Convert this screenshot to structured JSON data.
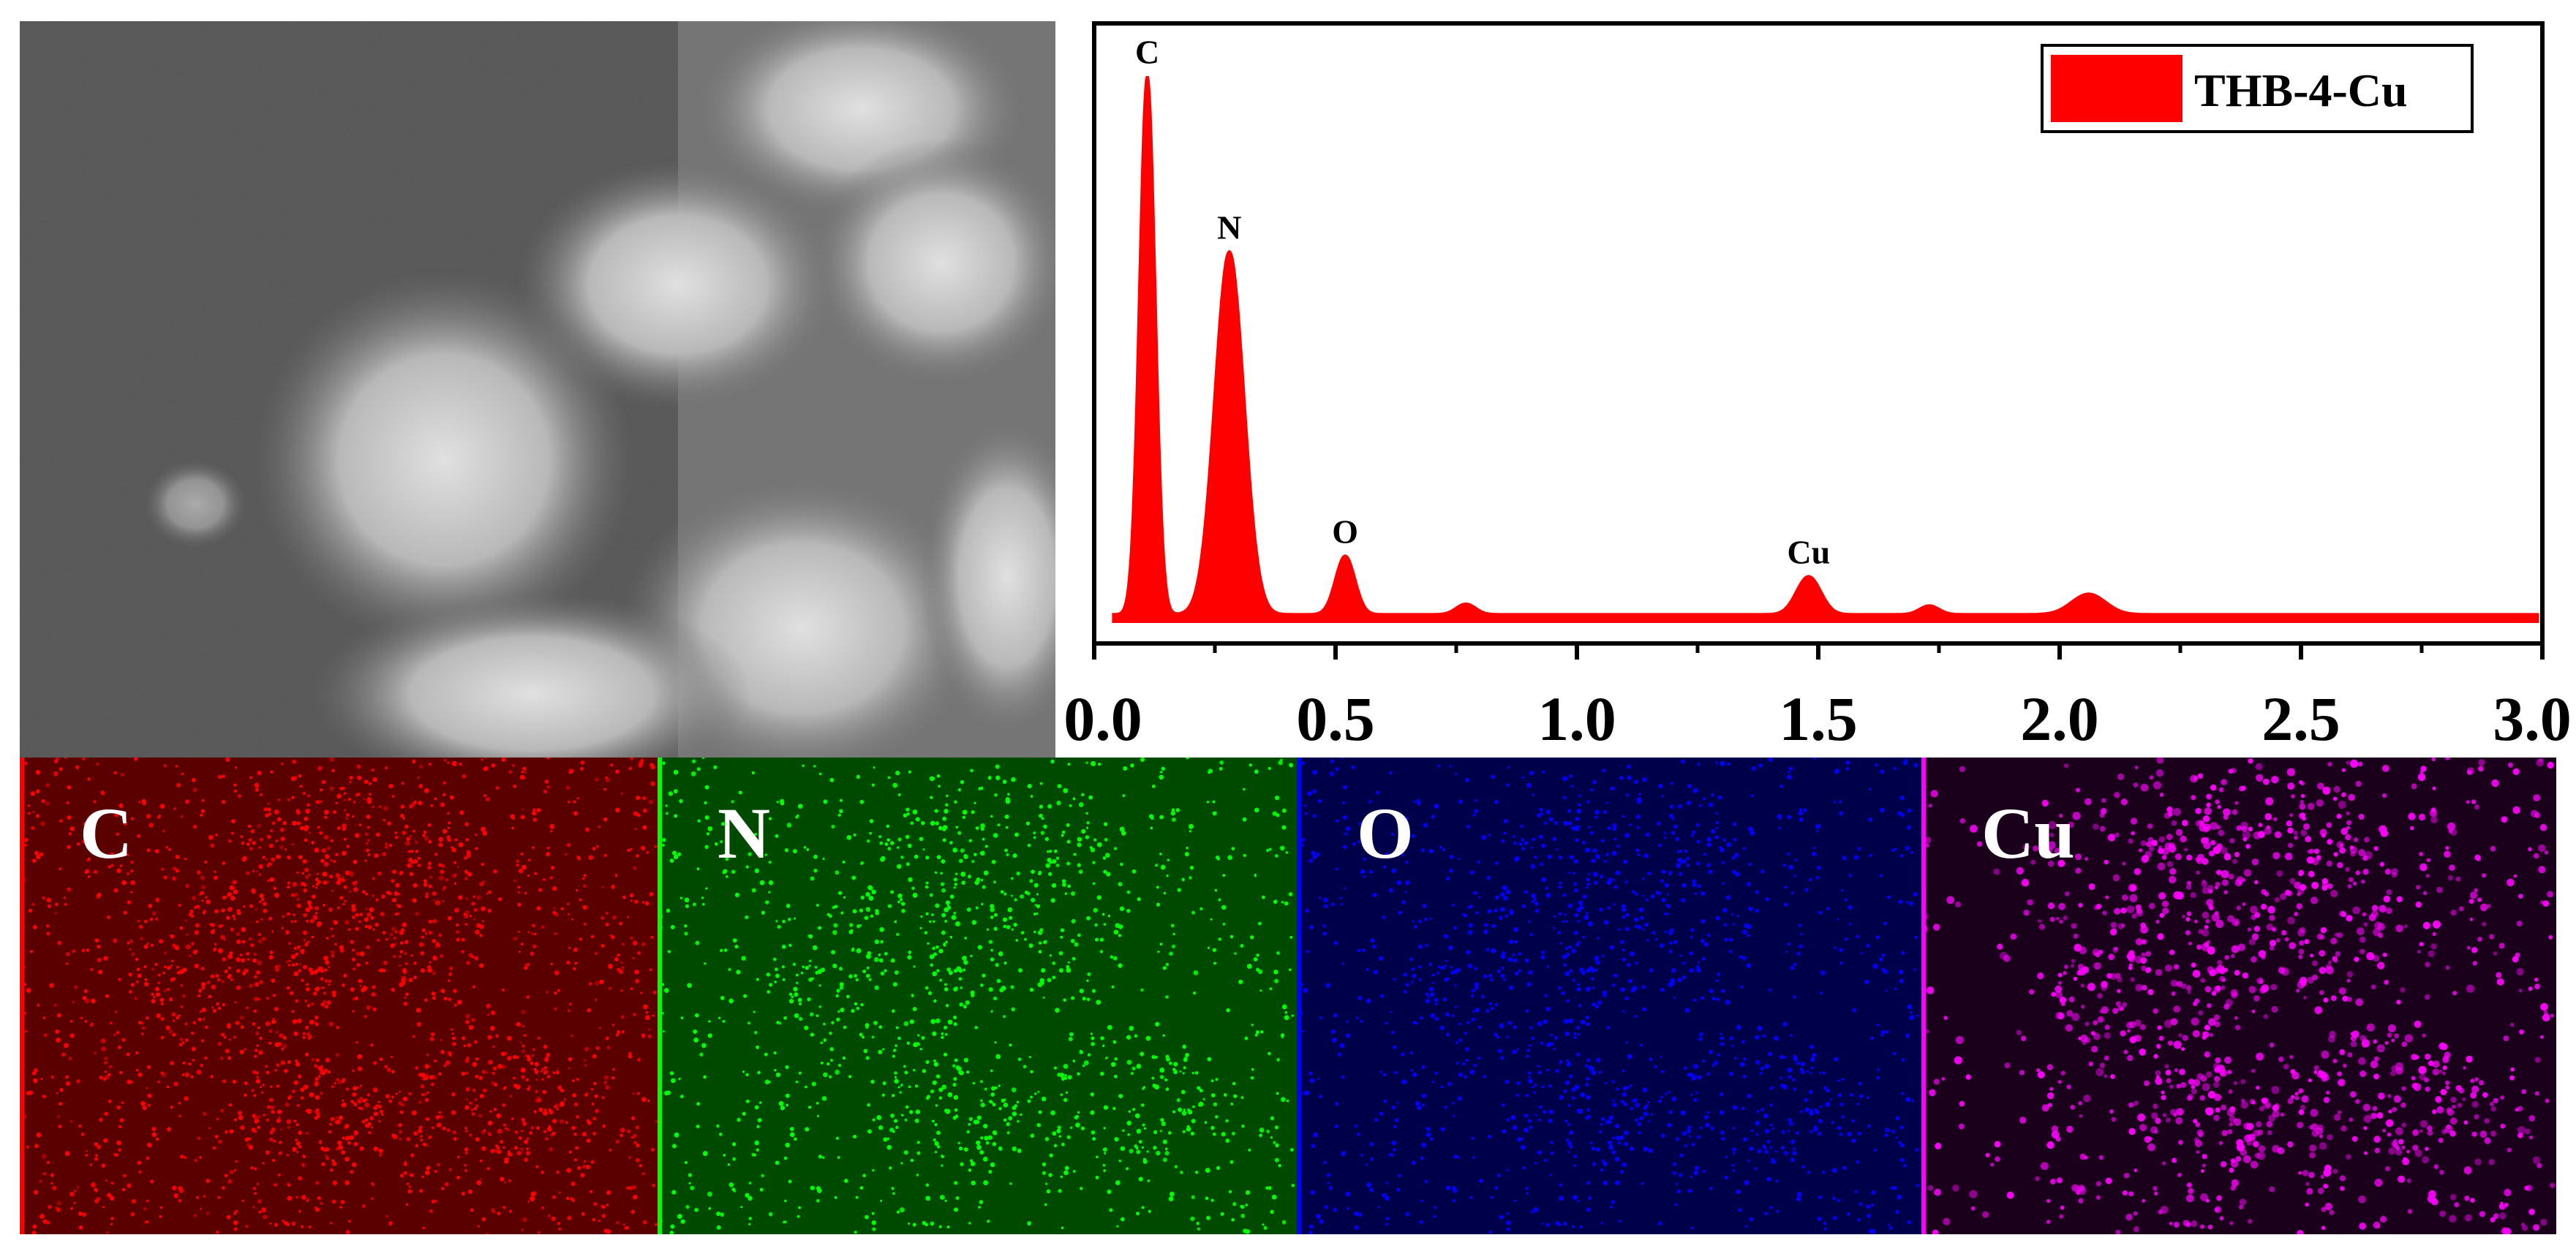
{
  "sem_image": {
    "description_icon": "sem-micrograph-flower-particles"
  },
  "chart_data": {
    "type": "area",
    "legend": {
      "entries": [
        "THB-4-Cu"
      ],
      "placement": "top-right"
    },
    "xlim": [
      0.0,
      3.0
    ],
    "ylim": [
      0,
      1
    ],
    "xticks": [
      "0.0",
      "0.5",
      "1.0",
      "1.5",
      "2.0",
      "2.5",
      "3.0"
    ],
    "xlabel": "",
    "ylabel": "",
    "color": "#ff0000",
    "peaks": [
      {
        "label": "C",
        "x": 0.11,
        "height": 0.92,
        "width": 0.016
      },
      {
        "label": "N",
        "x": 0.28,
        "height": 0.62,
        "width": 0.03
      },
      {
        "label": "O",
        "x": 0.52,
        "height": 0.1,
        "width": 0.02
      },
      {
        "label": "",
        "x": 0.77,
        "height": 0.018,
        "width": 0.02
      },
      {
        "label": "Cu",
        "x": 1.48,
        "height": 0.065,
        "width": 0.025
      },
      {
        "label": "",
        "x": 1.73,
        "height": 0.015,
        "width": 0.02
      },
      {
        "label": "",
        "x": 2.06,
        "height": 0.035,
        "width": 0.035
      }
    ],
    "baseline": 0.012
  },
  "maps": [
    {
      "label": "C",
      "color": "#ff0000",
      "bg": "#5a0000"
    },
    {
      "label": "N",
      "color": "#00ff00",
      "bg": "#004a00"
    },
    {
      "label": "O",
      "color": "#0000ff",
      "bg": "#00004a"
    },
    {
      "label": "Cu",
      "color": "#ff00ff",
      "bg": "#1a001a"
    }
  ]
}
